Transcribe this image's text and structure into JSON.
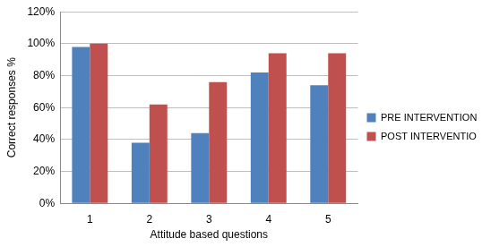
{
  "chart_data": {
    "type": "bar",
    "x_label": "Attitude based questions",
    "y_label": "Correct responses %",
    "categories": [
      "1",
      "2",
      "3",
      "4",
      "5"
    ],
    "series": [
      {
        "name": "PRE INTERVENTION",
        "color": "#4f81bd",
        "values": [
          98,
          38,
          44,
          82,
          74
        ]
      },
      {
        "name": "POST INTERVENTION",
        "color": "#c0504d",
        "values": [
          100,
          62,
          76,
          94,
          94
        ]
      }
    ],
    "ylim": [
      0,
      120
    ],
    "yticks": [
      {
        "value": 0,
        "label": "0%"
      },
      {
        "value": 20,
        "label": "20%"
      },
      {
        "value": 40,
        "label": "40%"
      },
      {
        "value": 60,
        "label": "60%"
      },
      {
        "value": 80,
        "label": "80%"
      },
      {
        "value": 100,
        "label": "100%"
      },
      {
        "value": 120,
        "label": "120%"
      }
    ],
    "grid": true,
    "legend": "right"
  }
}
